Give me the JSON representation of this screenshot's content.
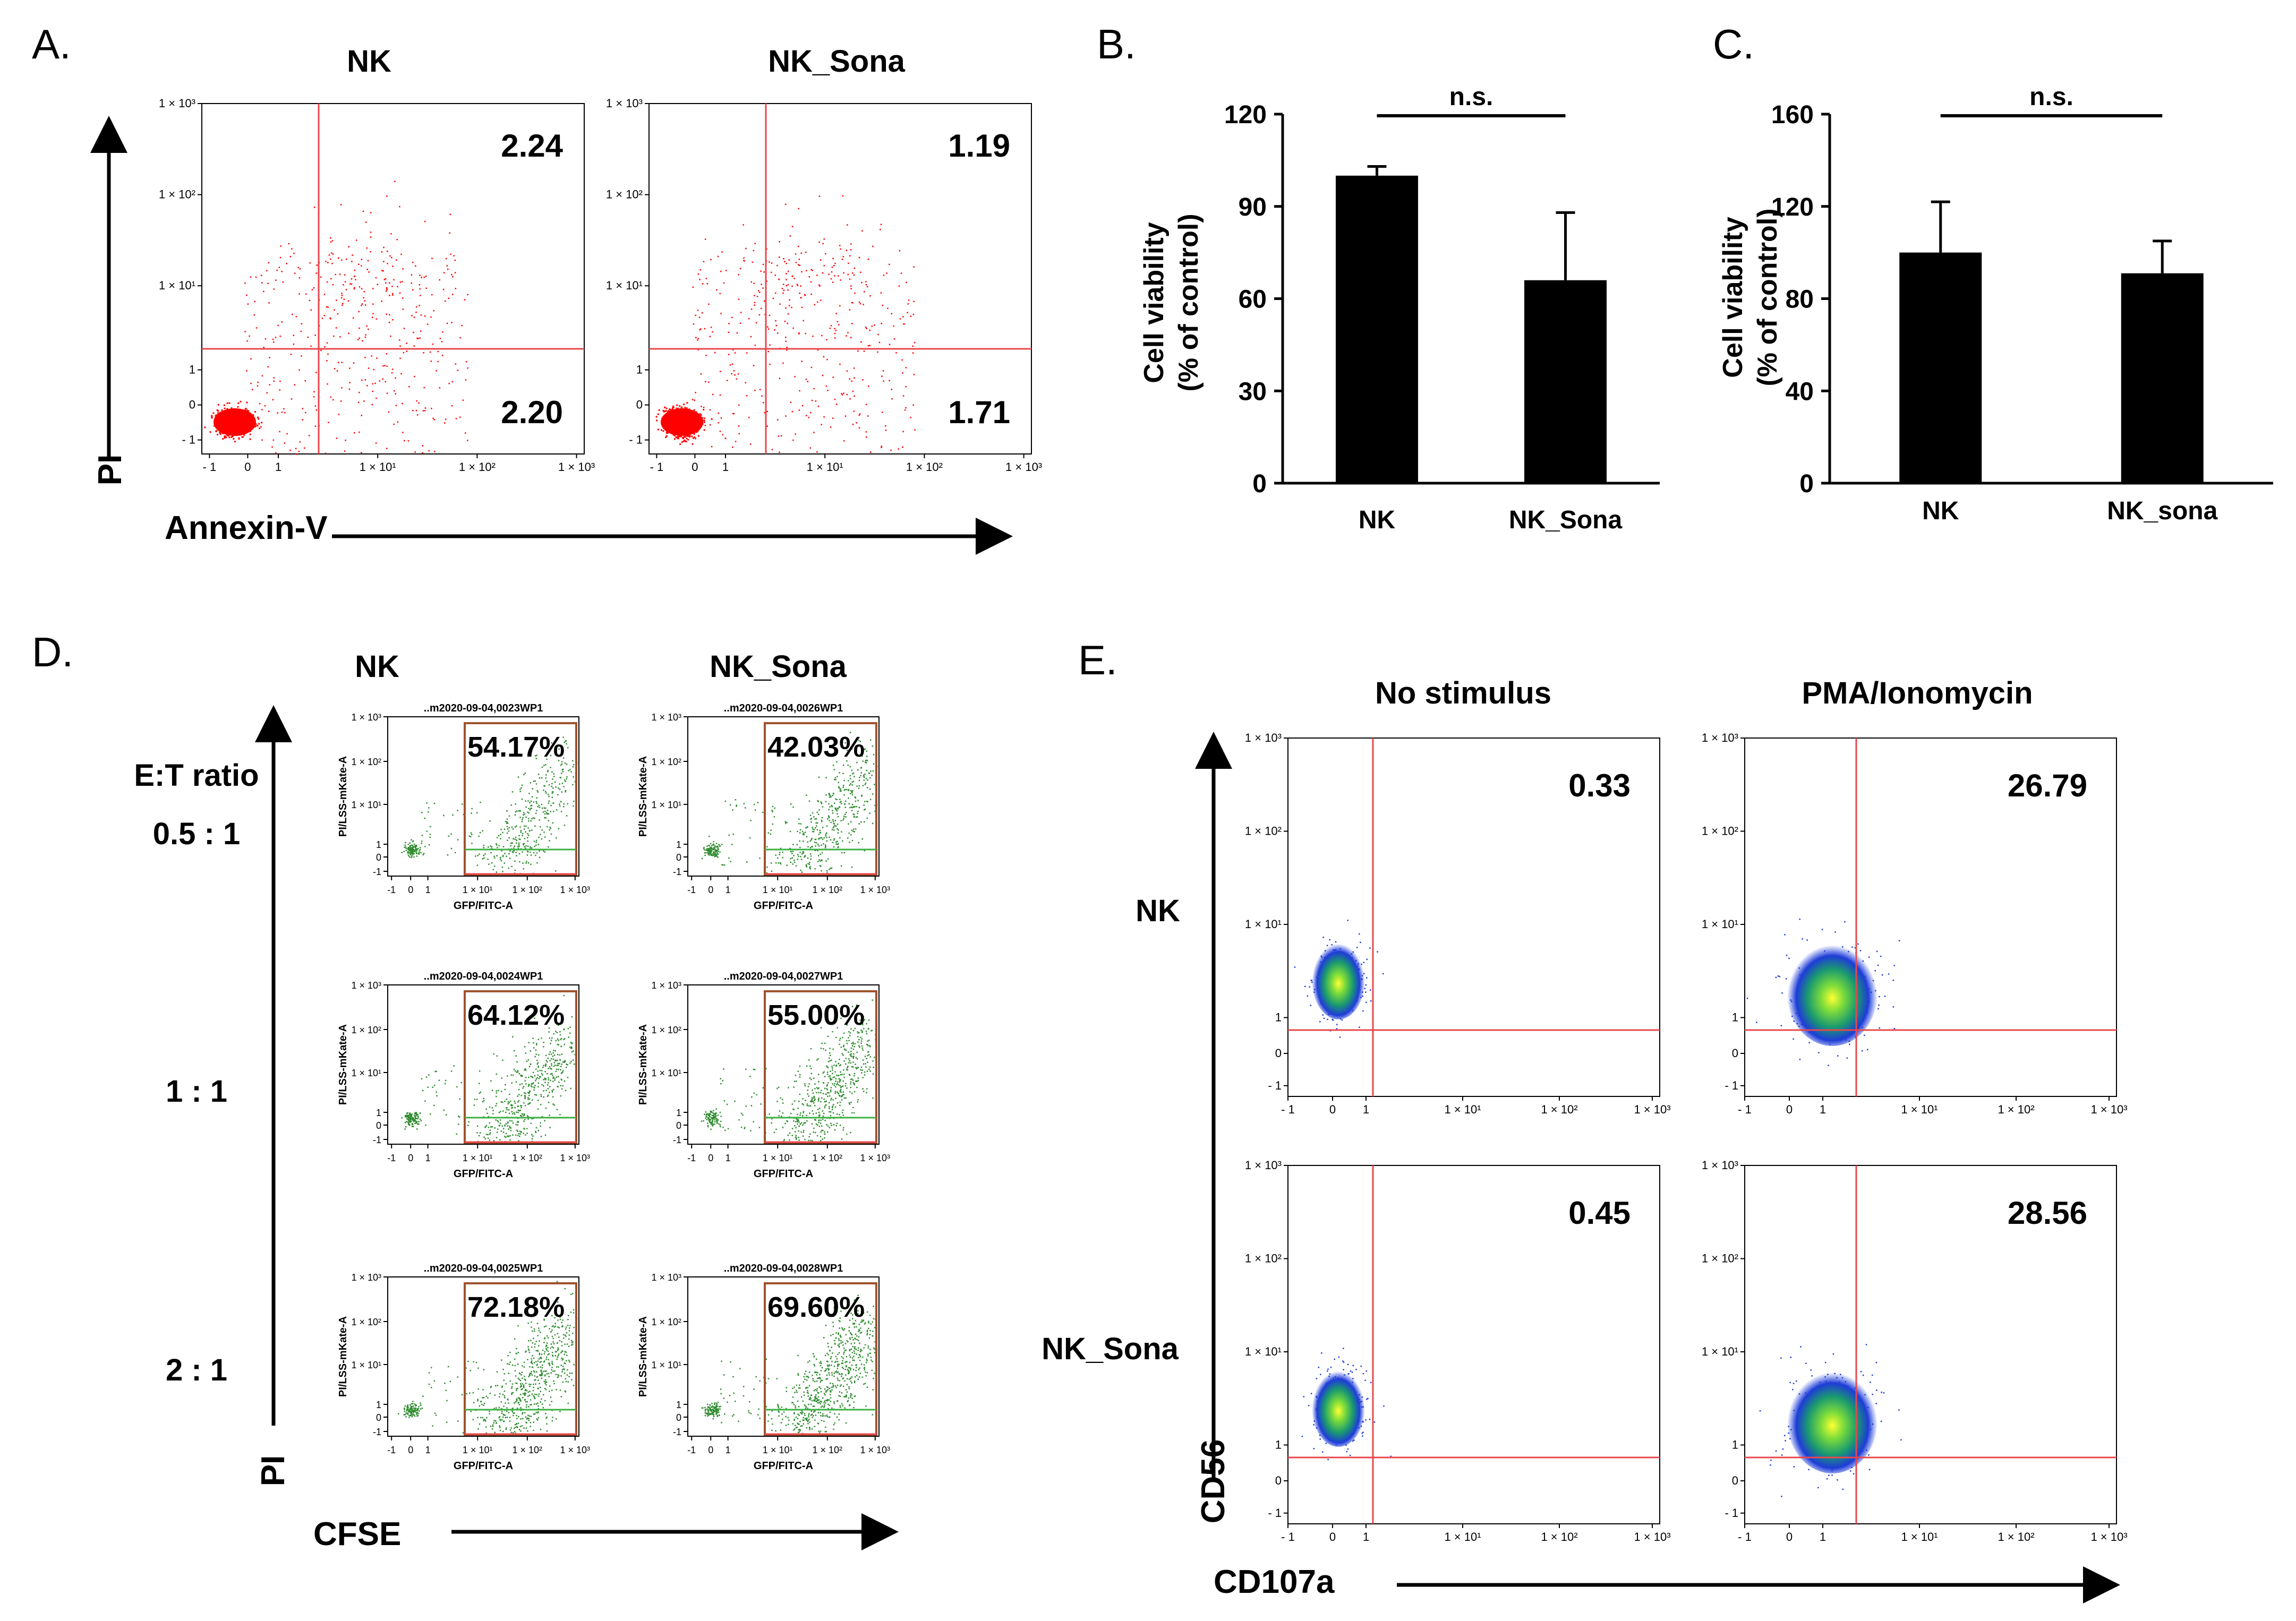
{
  "panel_labels": {
    "a": "A.",
    "b": "B.",
    "c": "C.",
    "d": "D.",
    "e": "E."
  },
  "panel_a": {
    "headers": [
      "NK",
      "NK_Sona"
    ],
    "y_axis_label": "PI",
    "x_axis_label": "Annexin-V",
    "y_ticks": [
      "1 × 10³",
      "1 × 10²",
      "1 × 10¹",
      "1",
      "0",
      "- 1"
    ],
    "x_ticks": [
      "- 1",
      "0",
      "1",
      "1 × 10¹",
      "1 × 10²",
      "1 × 10³"
    ],
    "plots": [
      {
        "name": "NK",
        "upper_right": "2.24",
        "lower_right": "2.20"
      },
      {
        "name": "NK_Sona",
        "upper_right": "1.19",
        "lower_right": "1.71"
      }
    ],
    "dot_color": "#ff0000",
    "gate_color": "#e8474c"
  },
  "panel_d": {
    "headers": [
      "NK",
      "NK_Sona"
    ],
    "row_title": "E:T ratio",
    "rows": [
      "0.5 : 1",
      "1 : 1",
      "2 : 1"
    ],
    "y_axis_label": "PI",
    "x_axis_label": "CFSE",
    "plot_ylabel": "PI/LSS-mKate-A",
    "plot_xlabel": "GFP/FITC-A",
    "y_ticks": [
      "1 × 10³",
      "1 × 10²",
      "1 × 10¹",
      "1",
      "0",
      "-1"
    ],
    "x_ticks": [
      "-1",
      "0",
      "1",
      "1 × 10¹",
      "1 × 10²",
      "1 × 10³"
    ],
    "plots": [
      {
        "title": "..m2020-09-04,0023WP1",
        "pct": "54.17%"
      },
      {
        "title": "..m2020-09-04,0026WP1",
        "pct": "42.03%"
      },
      {
        "title": "..m2020-09-04,0024WP1",
        "pct": "64.12%"
      },
      {
        "title": "..m2020-09-04,0027WP1",
        "pct": "55.00%"
      },
      {
        "title": "..m2020-09-04,0025WP1",
        "pct": "72.18%"
      },
      {
        "title": "..m2020-09-04,0028WP1",
        "pct": "69.60%"
      }
    ],
    "dot_color": "#2e8b2e",
    "gate_color": "#a0522d"
  },
  "panel_e": {
    "col_headers": [
      "No stimulus",
      "PMA/Ionomycin"
    ],
    "row_headers": [
      "NK",
      "NK_Sona"
    ],
    "y_axis_label": "CD56",
    "x_axis_label": "CD107a",
    "y_ticks": [
      "1 × 10³",
      "1 × 10²",
      "1 × 10¹",
      "1",
      "0",
      "- 1"
    ],
    "x_ticks": [
      "- 1",
      "0",
      "1",
      "1 × 10¹",
      "1 × 10²",
      "1 × 10³"
    ],
    "plots": [
      {
        "value": "0.33"
      },
      {
        "value": "26.79"
      },
      {
        "value": "0.45"
      },
      {
        "value": "28.56"
      }
    ],
    "gate_color": "#e8474c"
  },
  "chart_data": [
    {
      "type": "bar",
      "title": "",
      "panel": "B",
      "categories": [
        "NK",
        "NK_Sona"
      ],
      "values": [
        100,
        66
      ],
      "errors": [
        3,
        22
      ],
      "ylabel_line1": "Cell viability",
      "ylabel_line2": "(% of control)",
      "xlabel": "",
      "ylim": [
        0,
        120
      ],
      "yticks": [
        0,
        30,
        60,
        90,
        120
      ],
      "significance": "n.s.",
      "bar_color": "#000000"
    },
    {
      "type": "bar",
      "title": "",
      "panel": "C",
      "categories": [
        "NK",
        "NK_sona"
      ],
      "values": [
        100,
        91
      ],
      "errors": [
        22,
        14
      ],
      "ylabel_line1": "Cell viability",
      "ylabel_line2": "(% of control)",
      "xlabel": "",
      "ylim": [
        0,
        160
      ],
      "yticks": [
        0,
        40,
        80,
        120,
        160
      ],
      "significance": "n.s.",
      "bar_color": "#000000"
    }
  ]
}
